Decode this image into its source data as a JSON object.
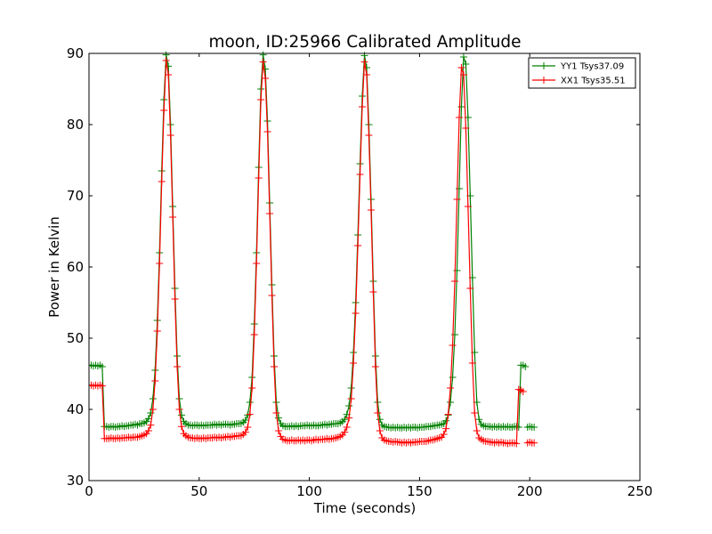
{
  "chart_data": {
    "type": "line",
    "title": "moon, ID:25966 Calibrated Amplitude",
    "xlabel": "Time (seconds)",
    "ylabel": "Power in Kelvin",
    "xlim": [
      0,
      250
    ],
    "ylim": [
      30,
      90
    ],
    "xticks": [
      0,
      50,
      100,
      150,
      200,
      250
    ],
    "yticks": [
      30,
      40,
      50,
      60,
      70,
      80,
      90
    ],
    "legend_position": "top-right",
    "sample_step_seconds": 1,
    "series": [
      {
        "name": "YY1 Tsys37.09",
        "color": "#008000",
        "marker": "+",
        "segments": [
          {
            "x0": 0,
            "y": [
              46.2,
              46.2,
              46.1,
              46.2,
              46.1,
              46.2,
              46.0,
              37.6,
              37.6,
              37.5,
              37.6,
              37.6,
              37.5,
              37.6,
              37.6,
              37.7,
              37.6,
              37.7,
              37.7,
              37.8,
              37.8,
              37.9,
              37.8,
              38.0,
              38.0,
              38.1,
              38.3,
              38.7,
              39.5,
              41.5,
              45.5,
              52.5,
              62.0,
              73.5,
              83.5,
              89.8,
              88.2,
              80.0,
              68.5,
              57.0,
              47.5,
              41.5,
              39.2,
              38.3,
              38.0,
              37.8,
              37.8,
              37.7,
              37.8,
              37.8,
              37.7,
              37.8,
              37.7,
              37.8,
              37.8,
              37.8,
              37.8,
              37.9,
              37.8,
              37.9,
              37.8,
              37.9,
              37.9,
              37.9,
              37.8,
              37.9,
              37.9,
              38.0,
              38.0,
              38.0,
              38.2,
              38.5,
              39.2,
              41.0,
              44.5,
              52.0,
              62.0,
              74.0,
              85.0,
              89.8,
              87.8,
              80.5,
              69.0,
              57.5,
              47.5,
              41.0,
              38.8,
              38.0,
              37.7,
              37.6,
              37.6,
              37.6,
              37.7,
              37.6,
              37.7,
              37.6,
              37.7,
              37.7,
              37.7,
              37.8,
              37.7,
              37.7,
              37.8,
              37.7,
              37.7,
              37.8,
              37.8,
              37.9,
              37.8,
              37.9,
              37.9,
              38.0,
              38.0,
              38.0,
              38.1,
              38.3,
              38.6,
              39.3,
              40.5,
              43.0,
              48.0,
              55.0,
              64.5,
              74.5,
              84.0,
              89.7,
              88.0,
              80.0,
              69.5,
              58.0,
              47.5,
              41.0,
              38.6,
              37.8,
              37.6,
              37.5,
              37.5,
              37.4,
              37.5,
              37.4,
              37.5,
              37.4,
              37.4,
              37.5,
              37.4,
              37.5,
              37.4,
              37.5,
              37.5,
              37.4,
              37.5,
              37.5,
              37.5,
              37.6,
              37.6,
              37.6,
              37.7,
              37.7,
              37.8,
              37.8,
              37.9,
              38.0,
              38.4,
              39.2,
              41.0,
              44.5,
              50.5,
              59.5,
              71.0,
              82.5,
              89.5,
              88.5,
              81.0,
              70.0,
              58.5,
              48.0,
              41.0,
              38.6,
              37.9,
              37.7,
              37.6,
              37.6,
              37.6,
              37.5,
              37.6,
              37.5,
              37.6,
              37.5,
              37.6,
              37.5,
              37.6,
              37.5,
              37.5,
              37.6,
              37.6,
              37.5,
              46.2,
              46.2,
              46.0
            ]
          },
          {
            "x0": 199,
            "y": [
              37.5,
              37.6,
              37.5,
              37.5
            ]
          }
        ]
      },
      {
        "name": "XX1 Tsys35.51",
        "color": "#ff0000",
        "marker": "+",
        "segments": [
          {
            "x0": 0,
            "y": [
              43.4,
              43.4,
              43.3,
              43.4,
              43.3,
              43.4,
              43.3,
              35.9,
              35.9,
              35.9,
              36.0,
              35.9,
              35.9,
              36.0,
              35.9,
              36.0,
              36.0,
              36.0,
              36.1,
              36.0,
              36.1,
              36.1,
              36.1,
              36.2,
              36.3,
              36.4,
              36.6,
              37.0,
              37.8,
              40.0,
              44.0,
              51.0,
              60.5,
              72.0,
              82.0,
              89.0,
              87.0,
              78.5,
              67.0,
              55.5,
              46.0,
              40.0,
              37.6,
              36.6,
              36.3,
              36.1,
              36.0,
              36.0,
              35.9,
              36.0,
              35.9,
              35.9,
              36.0,
              35.9,
              36.0,
              36.0,
              36.0,
              36.1,
              36.0,
              36.1,
              36.0,
              36.1,
              36.1,
              36.2,
              36.1,
              36.2,
              36.2,
              36.3,
              36.3,
              36.3,
              36.5,
              36.8,
              37.5,
              39.3,
              43.0,
              50.5,
              60.5,
              72.5,
              83.5,
              88.8,
              86.5,
              79.0,
              67.5,
              56.0,
              46.0,
              39.5,
              37.0,
              36.2,
              35.8,
              35.7,
              35.6,
              35.6,
              35.7,
              35.6,
              35.6,
              35.7,
              35.6,
              35.7,
              35.6,
              35.7,
              35.7,
              35.6,
              35.7,
              35.8,
              35.7,
              35.8,
              35.8,
              35.8,
              35.9,
              35.8,
              35.9,
              35.9,
              36.0,
              36.1,
              36.2,
              36.4,
              36.8,
              37.5,
              38.8,
              41.5,
              46.5,
              53.5,
              63.0,
              73.0,
              82.5,
              88.8,
              87.0,
              78.5,
              68.0,
              56.5,
              46.0,
              39.5,
              37.0,
              36.0,
              35.7,
              35.6,
              35.5,
              35.5,
              35.4,
              35.5,
              35.4,
              35.4,
              35.3,
              35.4,
              35.3,
              35.4,
              35.3,
              35.4,
              35.4,
              35.4,
              35.5,
              35.5,
              35.5,
              35.5,
              35.6,
              35.7,
              35.7,
              35.8,
              35.9,
              36.0,
              36.1,
              36.5,
              37.3,
              39.3,
              43.0,
              49.0,
              58.0,
              69.5,
              81.0,
              88.0,
              87.0,
              79.5,
              68.5,
              57.0,
              46.5,
              39.5,
              37.0,
              36.0,
              35.8,
              35.6,
              35.5,
              35.5,
              35.4,
              35.4,
              35.3,
              35.4,
              35.3,
              35.4,
              35.3,
              35.3,
              35.2,
              35.3,
              35.3,
              35.3,
              35.2,
              42.8,
              42.7,
              42.5
            ]
          },
          {
            "x0": 199,
            "y": [
              35.3,
              35.4,
              35.3,
              35.3
            ]
          }
        ]
      }
    ]
  }
}
